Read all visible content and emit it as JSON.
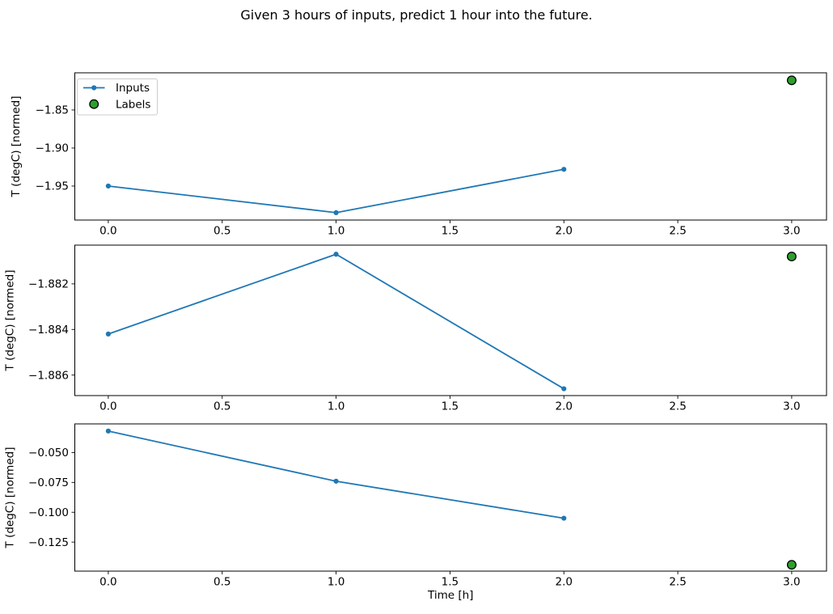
{
  "figure": {
    "title": "Given 3 hours of inputs, predict 1 hour into the future."
  },
  "chart_data": {
    "type": "line",
    "title": "Given 3 hours of inputs, predict 1 hour into the future.",
    "xlabel": "Time [h]",
    "xlim": [
      -0.147,
      3.153
    ],
    "x_tick_values": [
      0.0,
      0.5,
      1.0,
      1.5,
      2.0,
      2.5,
      3.0
    ],
    "x_tick_labels": [
      "0.0",
      "0.5",
      "1.0",
      "1.5",
      "2.0",
      "2.5",
      "3.0"
    ],
    "grid": false,
    "legend": {
      "position": "upper-left",
      "entries": [
        "Inputs",
        "Labels"
      ]
    },
    "colors": {
      "inputs_line": "#1f77b4",
      "labels_fill": "#2ca02c",
      "labels_edge": "#000000",
      "legend_border": "#cccccc",
      "legend_bg": "#ffffff"
    },
    "panels": [
      {
        "ylabel": "T (degC) [normed]",
        "ylim": [
          -1.9947,
          -1.8011
        ],
        "ytick_values": [
          -1.85,
          -1.9,
          -1.95
        ],
        "ytick_labels": [
          "−1.85",
          "−1.90",
          "−1.95"
        ],
        "series": [
          {
            "name": "Inputs",
            "x": [
              0,
              1,
              2
            ],
            "y": [
              -1.95,
              -1.985,
              -1.928
            ],
            "style": "line+marker"
          },
          {
            "name": "Labels",
            "x": [
              3
            ],
            "y": [
              -1.811
            ],
            "style": "scatter"
          }
        ]
      },
      {
        "ylabel": "T (degC) [normed]",
        "ylim": [
          -1.8869,
          -1.8803
        ],
        "ytick_values": [
          -1.882,
          -1.884,
          -1.886
        ],
        "ytick_labels": [
          "−1.882",
          "−1.884",
          "−1.886"
        ],
        "series": [
          {
            "name": "Inputs",
            "x": [
              0,
              1,
              2
            ],
            "y": [
              -1.8842,
              -1.8807,
              -1.8866
            ],
            "style": "line+marker"
          },
          {
            "name": "Labels",
            "x": [
              3
            ],
            "y": [
              -1.8808
            ],
            "style": "scatter"
          }
        ]
      },
      {
        "ylabel": "T (degC) [normed]",
        "ylim": [
          -0.1493,
          -0.026
        ],
        "ytick_values": [
          -0.05,
          -0.075,
          -0.1,
          -0.125
        ],
        "ytick_labels": [
          "−0.050",
          "−0.075",
          "−0.100",
          "−0.125"
        ],
        "series": [
          {
            "name": "Inputs",
            "x": [
              0,
              1,
              2
            ],
            "y": [
              -0.032,
              -0.074,
              -0.105
            ],
            "style": "line+marker"
          },
          {
            "name": "Labels",
            "x": [
              3
            ],
            "y": [
              -0.144
            ],
            "style": "scatter"
          }
        ]
      }
    ]
  }
}
